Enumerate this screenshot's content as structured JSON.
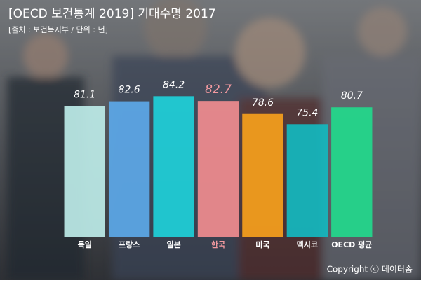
{
  "chart_data": {
    "type": "bar",
    "title": "[OECD 보건통계 2019] 기대수명 2017",
    "subtitle": "[출처 : 보건복지부 / 단위 : 년]",
    "categories": [
      "독일",
      "프랑스",
      "일본",
      "한국",
      "미국",
      "멕시코",
      "OECD 평균"
    ],
    "values": [
      81.1,
      82.6,
      84.2,
      82.7,
      78.6,
      75.4,
      80.7
    ],
    "colors": [
      "#bdece8",
      "#5ca8e8",
      "#1ed0d9",
      "#f08c8f",
      "#f6a01c",
      "#13b8bf",
      "#22d98c"
    ],
    "highlight": "한국",
    "highlight_color": "#f39aa0",
    "ylim": [
      40,
      90
    ],
    "copyright": "Copyright ⓒ 데이터솜"
  }
}
